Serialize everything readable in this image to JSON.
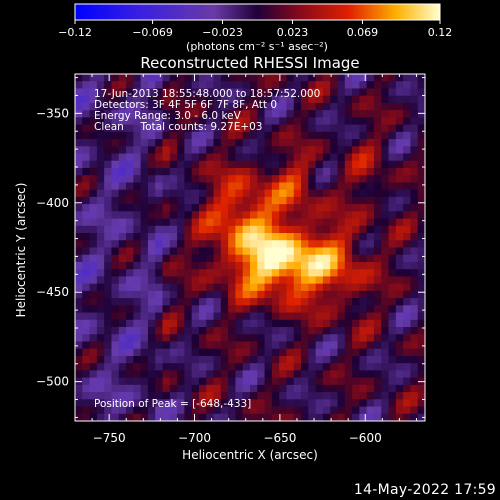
{
  "chart_data": {
    "type": "heatmap",
    "title": "Reconstructed RHESSI Image",
    "xlabel": "Heliocentric X (arcsec)",
    "ylabel": "Heliocentric Y (arcsec)",
    "xlim": [
      -770,
      -565
    ],
    "ylim": [
      -522,
      -328
    ],
    "xticks": [
      -750,
      -700,
      -650,
      -600
    ],
    "yticks": [
      -350,
      -400,
      -450,
      -500
    ],
    "colorbar": {
      "label": "(photons cm⁻² s⁻¹ asec⁻²)",
      "range": [
        -0.12,
        0.12
      ],
      "ticks": [
        "-0.12",
        "-0.069",
        "-0.023",
        "0.023",
        "0.069",
        "0.12"
      ]
    },
    "annotations": [
      "17-Jun-2013 18:55:48.000 to 18:57:52.000",
      "Detectors: 3F 4F 5F 6F 7F 8F, Att 0",
      "Energy Range: 3.0 - 6.0 keV",
      "Clean     Total counts: 9.27E+03"
    ],
    "peak_label": "Position of Peak = [-648,-433]",
    "peak": [
      -648,
      -433
    ]
  },
  "footer": {
    "timestamp": "14-May-2022 17:59"
  }
}
